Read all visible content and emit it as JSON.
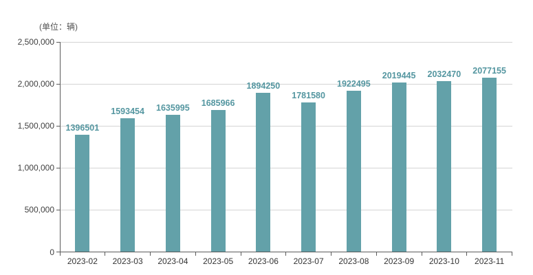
{
  "chart_data": {
    "type": "bar",
    "title": "",
    "unit_label": "(单位：辆)",
    "categories": [
      "2023-02",
      "2023-03",
      "2023-04",
      "2023-05",
      "2023-06",
      "2023-07",
      "2023-08",
      "2023-09",
      "2023-10",
      "2023-11"
    ],
    "values": [
      1396501,
      1593454,
      1635995,
      1685966,
      1894250,
      1781580,
      1922495,
      2019445,
      2032470,
      2077155
    ],
    "xlabel": "",
    "ylabel": "",
    "ylim": [
      0,
      2500000
    ],
    "y_ticks": [
      0,
      500000,
      1000000,
      1500000,
      2000000,
      2500000
    ],
    "y_tick_labels": [
      "0",
      "500,000",
      "1,000,000",
      "1,500,000",
      "2,000,000",
      "2,500,000"
    ],
    "grid": "horizontal",
    "legend": "none",
    "bar_color": "#63a1a9",
    "value_label_color": "#5496a0",
    "axis_color": "#5a5a5a",
    "gridline_color": "#d4d4d4",
    "tick_label_color": "#404040"
  }
}
